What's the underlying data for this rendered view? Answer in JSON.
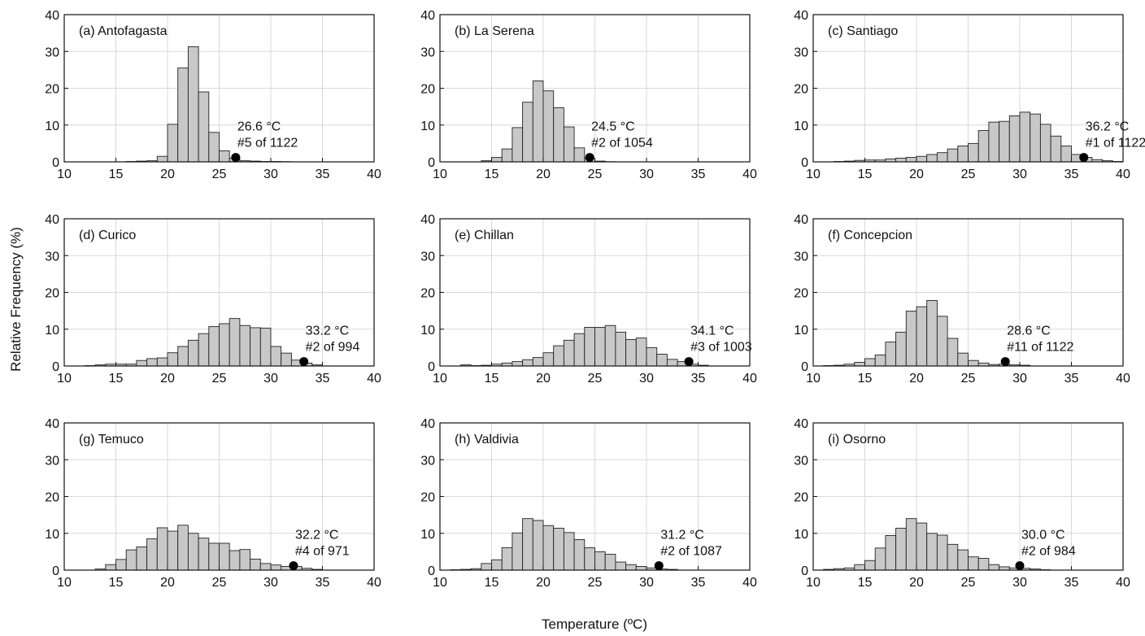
{
  "ylabel": "Relative Frequency (%)",
  "xlabel": "Temperature (ºC)",
  "chart_data": [
    {
      "type": "bar",
      "panel": "(a) Antofagasta",
      "xlim": [
        10,
        40
      ],
      "ylim": [
        0,
        40
      ],
      "xticks": [
        10,
        15,
        20,
        25,
        30,
        35,
        40
      ],
      "yticks": [
        0,
        10,
        20,
        30,
        40
      ],
      "bin_width": 1,
      "bin_start": 16,
      "values": [
        0.1,
        0.2,
        0.3,
        1.5,
        10.2,
        25.5,
        31.3,
        19.0,
        8.0,
        3.0,
        1.0,
        0.3,
        0.2,
        0.1,
        0.1,
        0.05
      ],
      "marker": {
        "x": 26.6,
        "y": 1.2
      },
      "annotation": [
        "26.6 °C",
        "#5 of 1122"
      ]
    },
    {
      "type": "bar",
      "panel": "(b) La Serena",
      "xlim": [
        10,
        40
      ],
      "ylim": [
        0,
        40
      ],
      "xticks": [
        10,
        15,
        20,
        25,
        30,
        35,
        40
      ],
      "yticks": [
        0,
        10,
        20,
        30,
        40
      ],
      "bin_width": 1,
      "bin_start": 14,
      "values": [
        0.3,
        1.2,
        3.5,
        9.3,
        16.2,
        22.0,
        19.3,
        14.7,
        9.5,
        3.8,
        1.0,
        0.2,
        0.05
      ],
      "marker": {
        "x": 24.5,
        "y": 1.2
      },
      "annotation": [
        "24.5 °C",
        "#2 of 1054"
      ]
    },
    {
      "type": "bar",
      "panel": "(c) Santiago",
      "xlim": [
        10,
        40
      ],
      "ylim": [
        0,
        40
      ],
      "xticks": [
        10,
        15,
        20,
        25,
        30,
        35,
        40
      ],
      "yticks": [
        0,
        10,
        20,
        30,
        40
      ],
      "bin_width": 1,
      "bin_start": 12,
      "values": [
        0.1,
        0.2,
        0.4,
        0.5,
        0.5,
        0.8,
        1.0,
        1.2,
        1.5,
        2.0,
        2.5,
        3.5,
        4.3,
        5.0,
        8.5,
        10.8,
        11.0,
        12.5,
        13.5,
        13.0,
        10.2,
        7.0,
        4.3,
        2.0,
        1.2,
        0.6,
        0.3,
        0.1
      ],
      "marker": {
        "x": 36.2,
        "y": 1.2
      },
      "annotation": [
        "36.2 °C",
        "#1 of 1122"
      ]
    },
    {
      "type": "bar",
      "panel": "(d) Curico",
      "xlim": [
        10,
        40
      ],
      "ylim": [
        0,
        40
      ],
      "xticks": [
        10,
        15,
        20,
        25,
        30,
        35,
        40
      ],
      "yticks": [
        0,
        10,
        20,
        30,
        40
      ],
      "bin_width": 1,
      "bin_start": 12,
      "values": [
        0.1,
        0.3,
        0.5,
        0.5,
        0.5,
        1.5,
        2.0,
        2.2,
        3.6,
        5.3,
        7.0,
        8.8,
        10.7,
        11.5,
        12.9,
        11.0,
        10.4,
        10.3,
        5.3,
        3.5,
        1.6,
        0.8,
        0.3
      ],
      "marker": {
        "x": 33.2,
        "y": 1.2
      },
      "annotation": [
        "33.2 °C",
        "#2 of 994"
      ]
    },
    {
      "type": "bar",
      "panel": "(e) Chillan",
      "xlim": [
        10,
        40
      ],
      "ylim": [
        0,
        40
      ],
      "xticks": [
        10,
        15,
        20,
        25,
        30,
        35,
        40
      ],
      "yticks": [
        0,
        10,
        20,
        30,
        40
      ],
      "bin_width": 1,
      "bin_start": 12,
      "values": [
        0.3,
        0.1,
        0.2,
        0.5,
        0.8,
        1.2,
        1.7,
        2.3,
        3.6,
        5.5,
        7.0,
        8.8,
        10.5,
        10.5,
        11.0,
        9.2,
        7.2,
        7.6,
        5.0,
        3.2,
        1.8,
        1.2,
        0.5,
        0.2
      ],
      "marker": {
        "x": 34.1,
        "y": 1.2
      },
      "annotation": [
        "34.1 °C",
        "#3 of 1003"
      ]
    },
    {
      "type": "bar",
      "panel": "(f) Concepcion",
      "xlim": [
        10,
        40
      ],
      "ylim": [
        0,
        40
      ],
      "xticks": [
        10,
        15,
        20,
        25,
        30,
        35,
        40
      ],
      "yticks": [
        0,
        10,
        20,
        30,
        40
      ],
      "bin_width": 1,
      "bin_start": 11,
      "values": [
        0.1,
        0.2,
        0.5,
        1.0,
        2.0,
        3.0,
        6.5,
        9.2,
        14.9,
        16.1,
        17.8,
        13.5,
        7.5,
        3.5,
        1.5,
        0.8,
        0.4,
        0.5,
        0.3,
        0.2
      ],
      "marker": {
        "x": 28.6,
        "y": 1.2
      },
      "annotation": [
        "28.6 °C",
        "#11 of 1122"
      ]
    },
    {
      "type": "bar",
      "panel": "(g) Temuco",
      "xlim": [
        10,
        40
      ],
      "ylim": [
        0,
        40
      ],
      "xticks": [
        10,
        15,
        20,
        25,
        30,
        35,
        40
      ],
      "yticks": [
        0,
        10,
        20,
        30,
        40
      ],
      "bin_width": 1,
      "bin_start": 13,
      "values": [
        0.3,
        1.5,
        2.9,
        5.5,
        6.3,
        8.5,
        11.5,
        10.6,
        12.2,
        10.0,
        8.7,
        7.3,
        7.3,
        5.3,
        5.6,
        3.0,
        1.8,
        1.4,
        1.0,
        1.0,
        0.5,
        0.2
      ],
      "marker": {
        "x": 32.2,
        "y": 1.2
      },
      "annotation": [
        "32.2 °C",
        "#4 of 971"
      ]
    },
    {
      "type": "bar",
      "panel": "(h) Valdivia",
      "xlim": [
        10,
        40
      ],
      "ylim": [
        0,
        40
      ],
      "xticks": [
        10,
        15,
        20,
        25,
        30,
        35,
        40
      ],
      "yticks": [
        0,
        10,
        20,
        30,
        40
      ],
      "bin_width": 1,
      "bin_start": 11,
      "values": [
        0.1,
        0.2,
        0.4,
        1.8,
        2.8,
        6.1,
        10.1,
        14.0,
        13.5,
        12.1,
        11.4,
        10.2,
        8.3,
        6.1,
        5.0,
        4.3,
        2.2,
        1.5,
        1.0,
        0.6,
        0.3,
        0.2
      ],
      "marker": {
        "x": 31.2,
        "y": 1.2
      },
      "annotation": [
        "31.2 °C",
        "#2 of 1087"
      ]
    },
    {
      "type": "bar",
      "panel": "(i) Osorno",
      "xlim": [
        10,
        40
      ],
      "ylim": [
        0,
        40
      ],
      "xticks": [
        10,
        15,
        20,
        25,
        30,
        35,
        40
      ],
      "yticks": [
        0,
        10,
        20,
        30,
        40
      ],
      "bin_width": 1,
      "bin_start": 11,
      "values": [
        0.2,
        0.4,
        0.6,
        1.5,
        2.6,
        6.0,
        9.4,
        11.4,
        14.0,
        12.8,
        10.0,
        9.5,
        7.0,
        5.5,
        3.6,
        3.2,
        1.5,
        0.9,
        0.6,
        0.5,
        0.3,
        0.1
      ],
      "marker": {
        "x": 30.0,
        "y": 1.2
      },
      "annotation": [
        "30.0 °C",
        "#2 of 984"
      ]
    }
  ]
}
